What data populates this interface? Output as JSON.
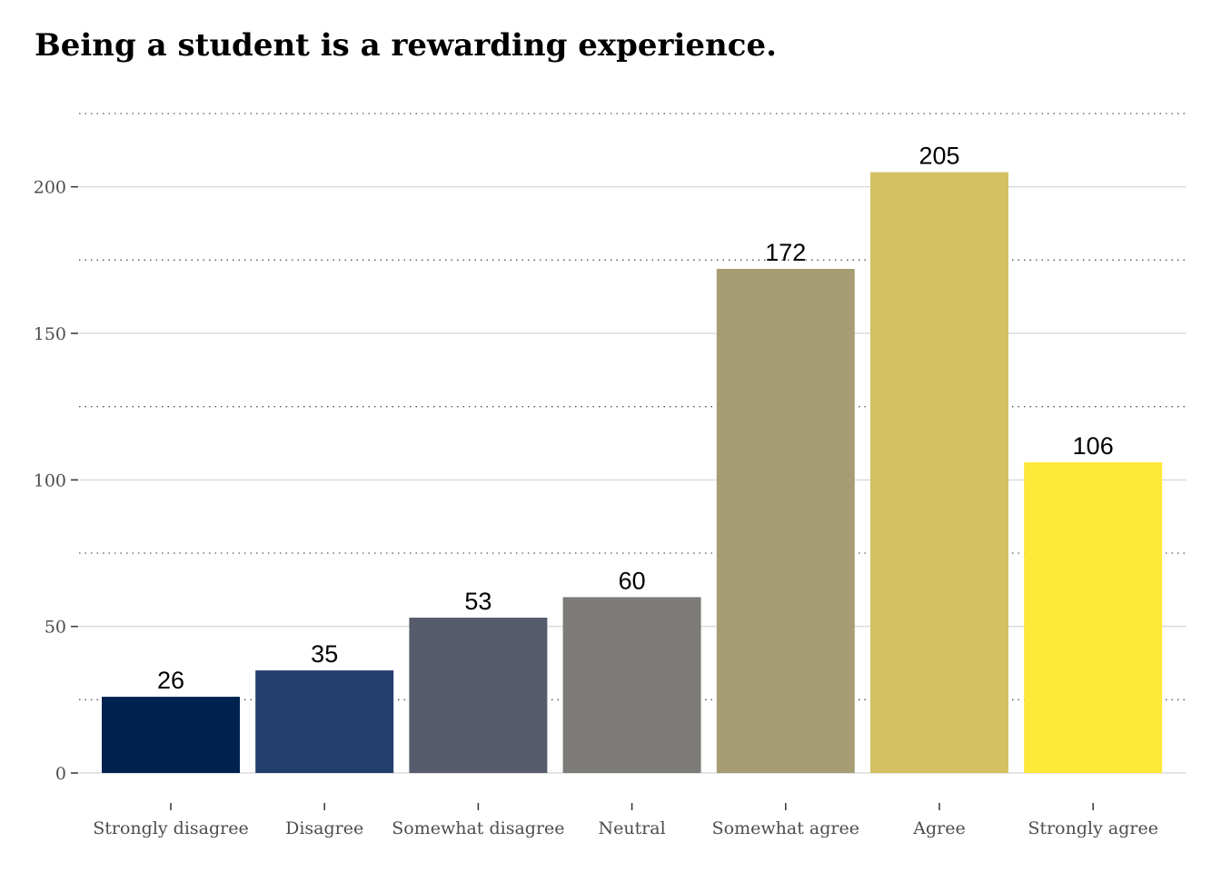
{
  "chart_data": {
    "type": "bar",
    "title": "Being a student is a rewarding experience.",
    "categories": [
      "Strongly disagree",
      "Disagree",
      "Somewhat disagree",
      "Neutral",
      "Somewhat agree",
      "Agree",
      "Strongly agree"
    ],
    "values": [
      26,
      35,
      53,
      60,
      172,
      205,
      106
    ],
    "colors": [
      "#00224e",
      "#233e6c",
      "#575c6d",
      "#7c7b78",
      "#a69d75",
      "#d3c164",
      "#fee838"
    ],
    "ylim": [
      0,
      225
    ],
    "yticks": [
      0,
      50,
      100,
      150,
      200
    ],
    "xlabel": "",
    "ylabel": "",
    "grid": true,
    "legend": "none"
  }
}
